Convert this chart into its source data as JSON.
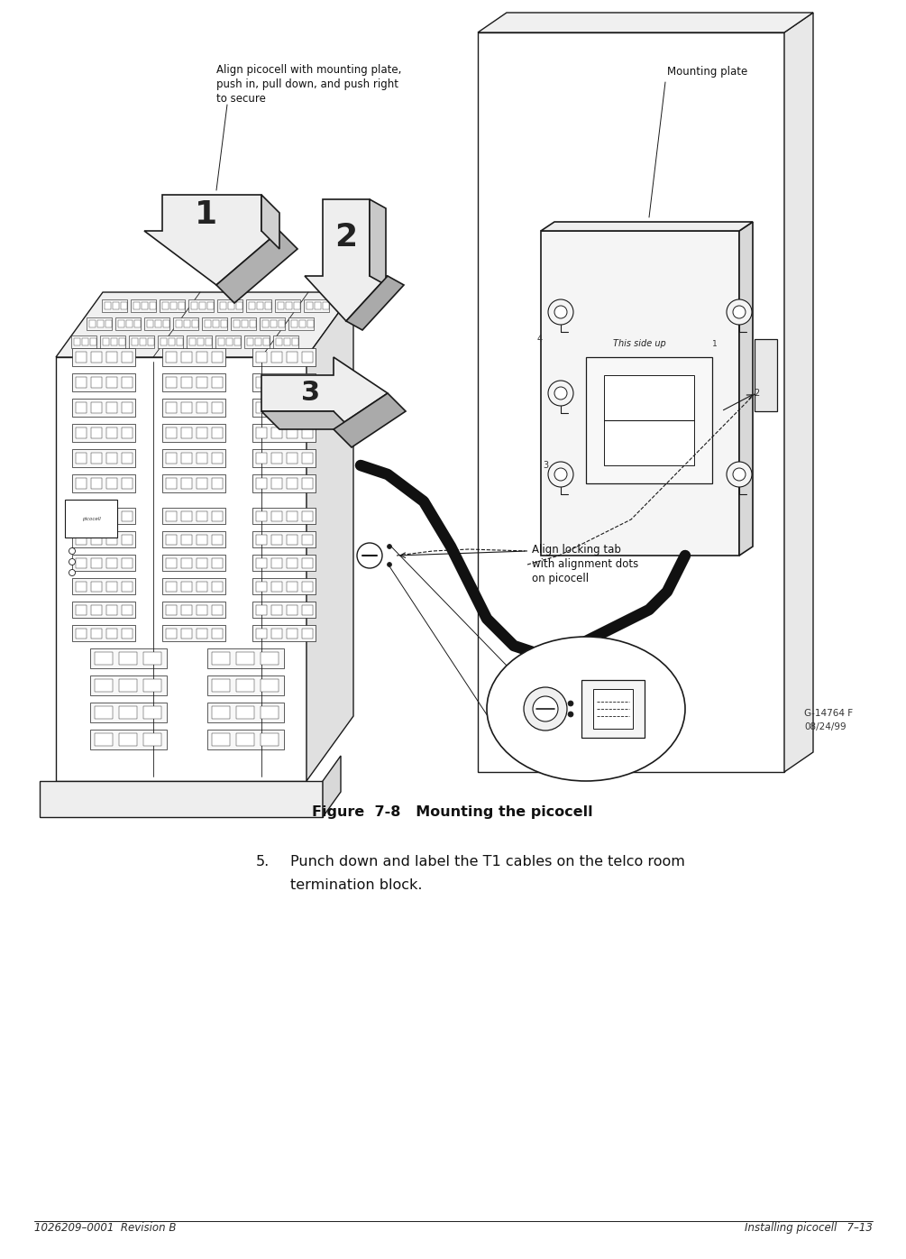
{
  "page_width": 10.05,
  "page_height": 13.96,
  "bg_color": "#ffffff",
  "footer_left": "1026209–0001  Revision B",
  "footer_right": "Installing picocell   7–13",
  "figure_caption": "Figure  7-8   Mounting the picocell",
  "step5_number": "5.",
  "step5_text_line1": "Punch down and label the T1 cables on the telco room",
  "step5_text_line2": "termination block.",
  "callout_mounting_plate": "Mounting plate",
  "callout_align_top1": "Align picocell with mounting plate,",
  "callout_align_top2": "push in, pull down, and push right",
  "callout_align_top3": "to secure",
  "callout_align_lock1": "Align locking tab",
  "callout_align_lock2": "with alignment dots",
  "callout_align_lock3": "on picocell",
  "callout_this_side_up": "This side up",
  "label_1": "1",
  "label_2": "2",
  "label_3": "3",
  "fig_code": "G-14764 F",
  "fig_date": "08/24/99",
  "lc": "#1a1a1a",
  "body_color": "#2a2a2a",
  "lw": 1.0,
  "footer_fontsize": 8.5,
  "caption_fontsize": 11.5,
  "step5_fontsize": 11.5
}
